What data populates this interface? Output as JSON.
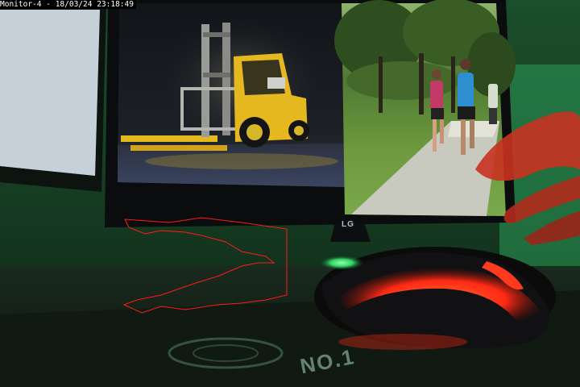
{
  "camera_overlay": {
    "label": "Monitor-4",
    "separator": "-",
    "date": "18/03/24",
    "time": "23:18:49"
  },
  "monitor": {
    "brand_logo": "LG",
    "left_image": {
      "subject": "yellow forklift",
      "icon": "forklift"
    },
    "right_image": {
      "subject": "joggers on park path",
      "icon": "runners"
    }
  },
  "mousepad": {
    "print": "NO.1"
  },
  "mouse": {
    "led_colors": {
      "glow": "#ff3a1e",
      "accent": "#39d46a"
    }
  },
  "annotation": {
    "outline_color": "#ff1a1a"
  },
  "colors": {
    "ambient": "#1d3a24",
    "forklift": "#e5b81f",
    "shirt_pink": "#c23b66",
    "shirt_blue": "#2e8fd0"
  }
}
